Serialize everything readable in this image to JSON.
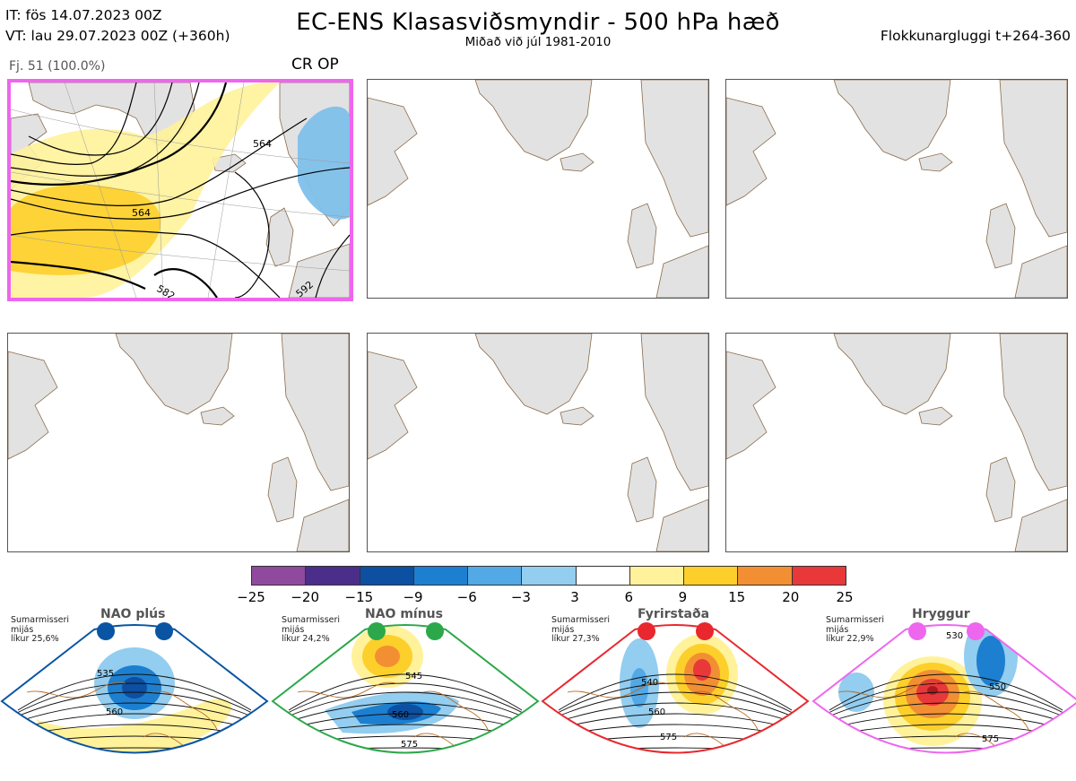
{
  "header": {
    "it_line": "IT: fös 14.07.2023 00Z",
    "vt_line": "VT: lau 29.07.2023 00Z  (+360h)",
    "title": "EC-ENS Klasasviðsmyndir - 500 hPa hæð",
    "subtitle": "Miðað við júl 1981-2010",
    "window": "Flokkunargluggi t+264-360"
  },
  "cluster_panel": {
    "label": "Fj. 51 (100.0%)",
    "tag": "CR OP",
    "contour_labels": [
      "564",
      "564",
      "582",
      "592"
    ],
    "highlight_color": "#ee66ee"
  },
  "empty_panels": [
    {
      "name": "map-panel-2"
    },
    {
      "name": "map-panel-3"
    },
    {
      "name": "map-panel-4"
    },
    {
      "name": "map-panel-5"
    },
    {
      "name": "map-panel-6"
    }
  ],
  "colorbar": {
    "ticks": [
      "−25",
      "−20",
      "−15",
      "−9",
      "−6",
      "−3",
      "3",
      "6",
      "9",
      "15",
      "20",
      "25"
    ],
    "colors": [
      "#8f4a9e",
      "#4b2e8a",
      "#0d4fa0",
      "#1c7fd0",
      "#53a9e6",
      "#93cdef",
      "#ffffff",
      "#fff29a",
      "#fdcf2b",
      "#f28f32",
      "#e8383a",
      "#b01820"
    ]
  },
  "regimes": [
    {
      "title": "NAO plús",
      "info": [
        "Sumarmisseri",
        "mijás",
        "líkur 25,6%"
      ],
      "labels": [
        "535",
        "560"
      ],
      "color": "#0a55a3"
    },
    {
      "title": "NAO mínus",
      "info": [
        "Sumarmisseri",
        "mijás",
        "líkur 24,2%"
      ],
      "labels": [
        "545",
        "560",
        "575"
      ],
      "color": "#2ca84a"
    },
    {
      "title": "Fyrirstaða",
      "info": [
        "Sumarmisseri",
        "mijás",
        "líkur 27,3%"
      ],
      "labels": [
        "540",
        "560",
        "575"
      ],
      "color": "#e8282e"
    },
    {
      "title": "Hryggur",
      "info": [
        "Sumarmisseri",
        "mijás",
        "líkur 22,9%"
      ],
      "labels": [
        "530",
        "550",
        "575"
      ],
      "color": "#ee66ee"
    }
  ]
}
